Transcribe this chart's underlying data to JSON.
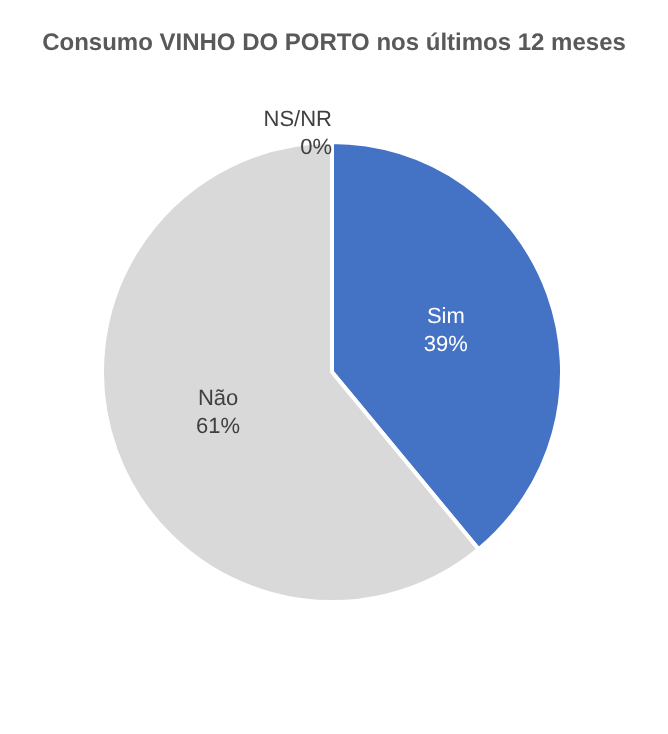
{
  "chart_data": {
    "type": "pie",
    "title": "Consumo VINHO DO PORTO nos últimos 12 meses",
    "categories": [
      "NS/NR",
      "Sim",
      "Não"
    ],
    "values": [
      0,
      39,
      61
    ],
    "value_labels": [
      "0%",
      "39%",
      "61%"
    ],
    "colors": [
      "#a5a5a5",
      "#4472c4",
      "#d9d9d9"
    ],
    "legend": false
  }
}
